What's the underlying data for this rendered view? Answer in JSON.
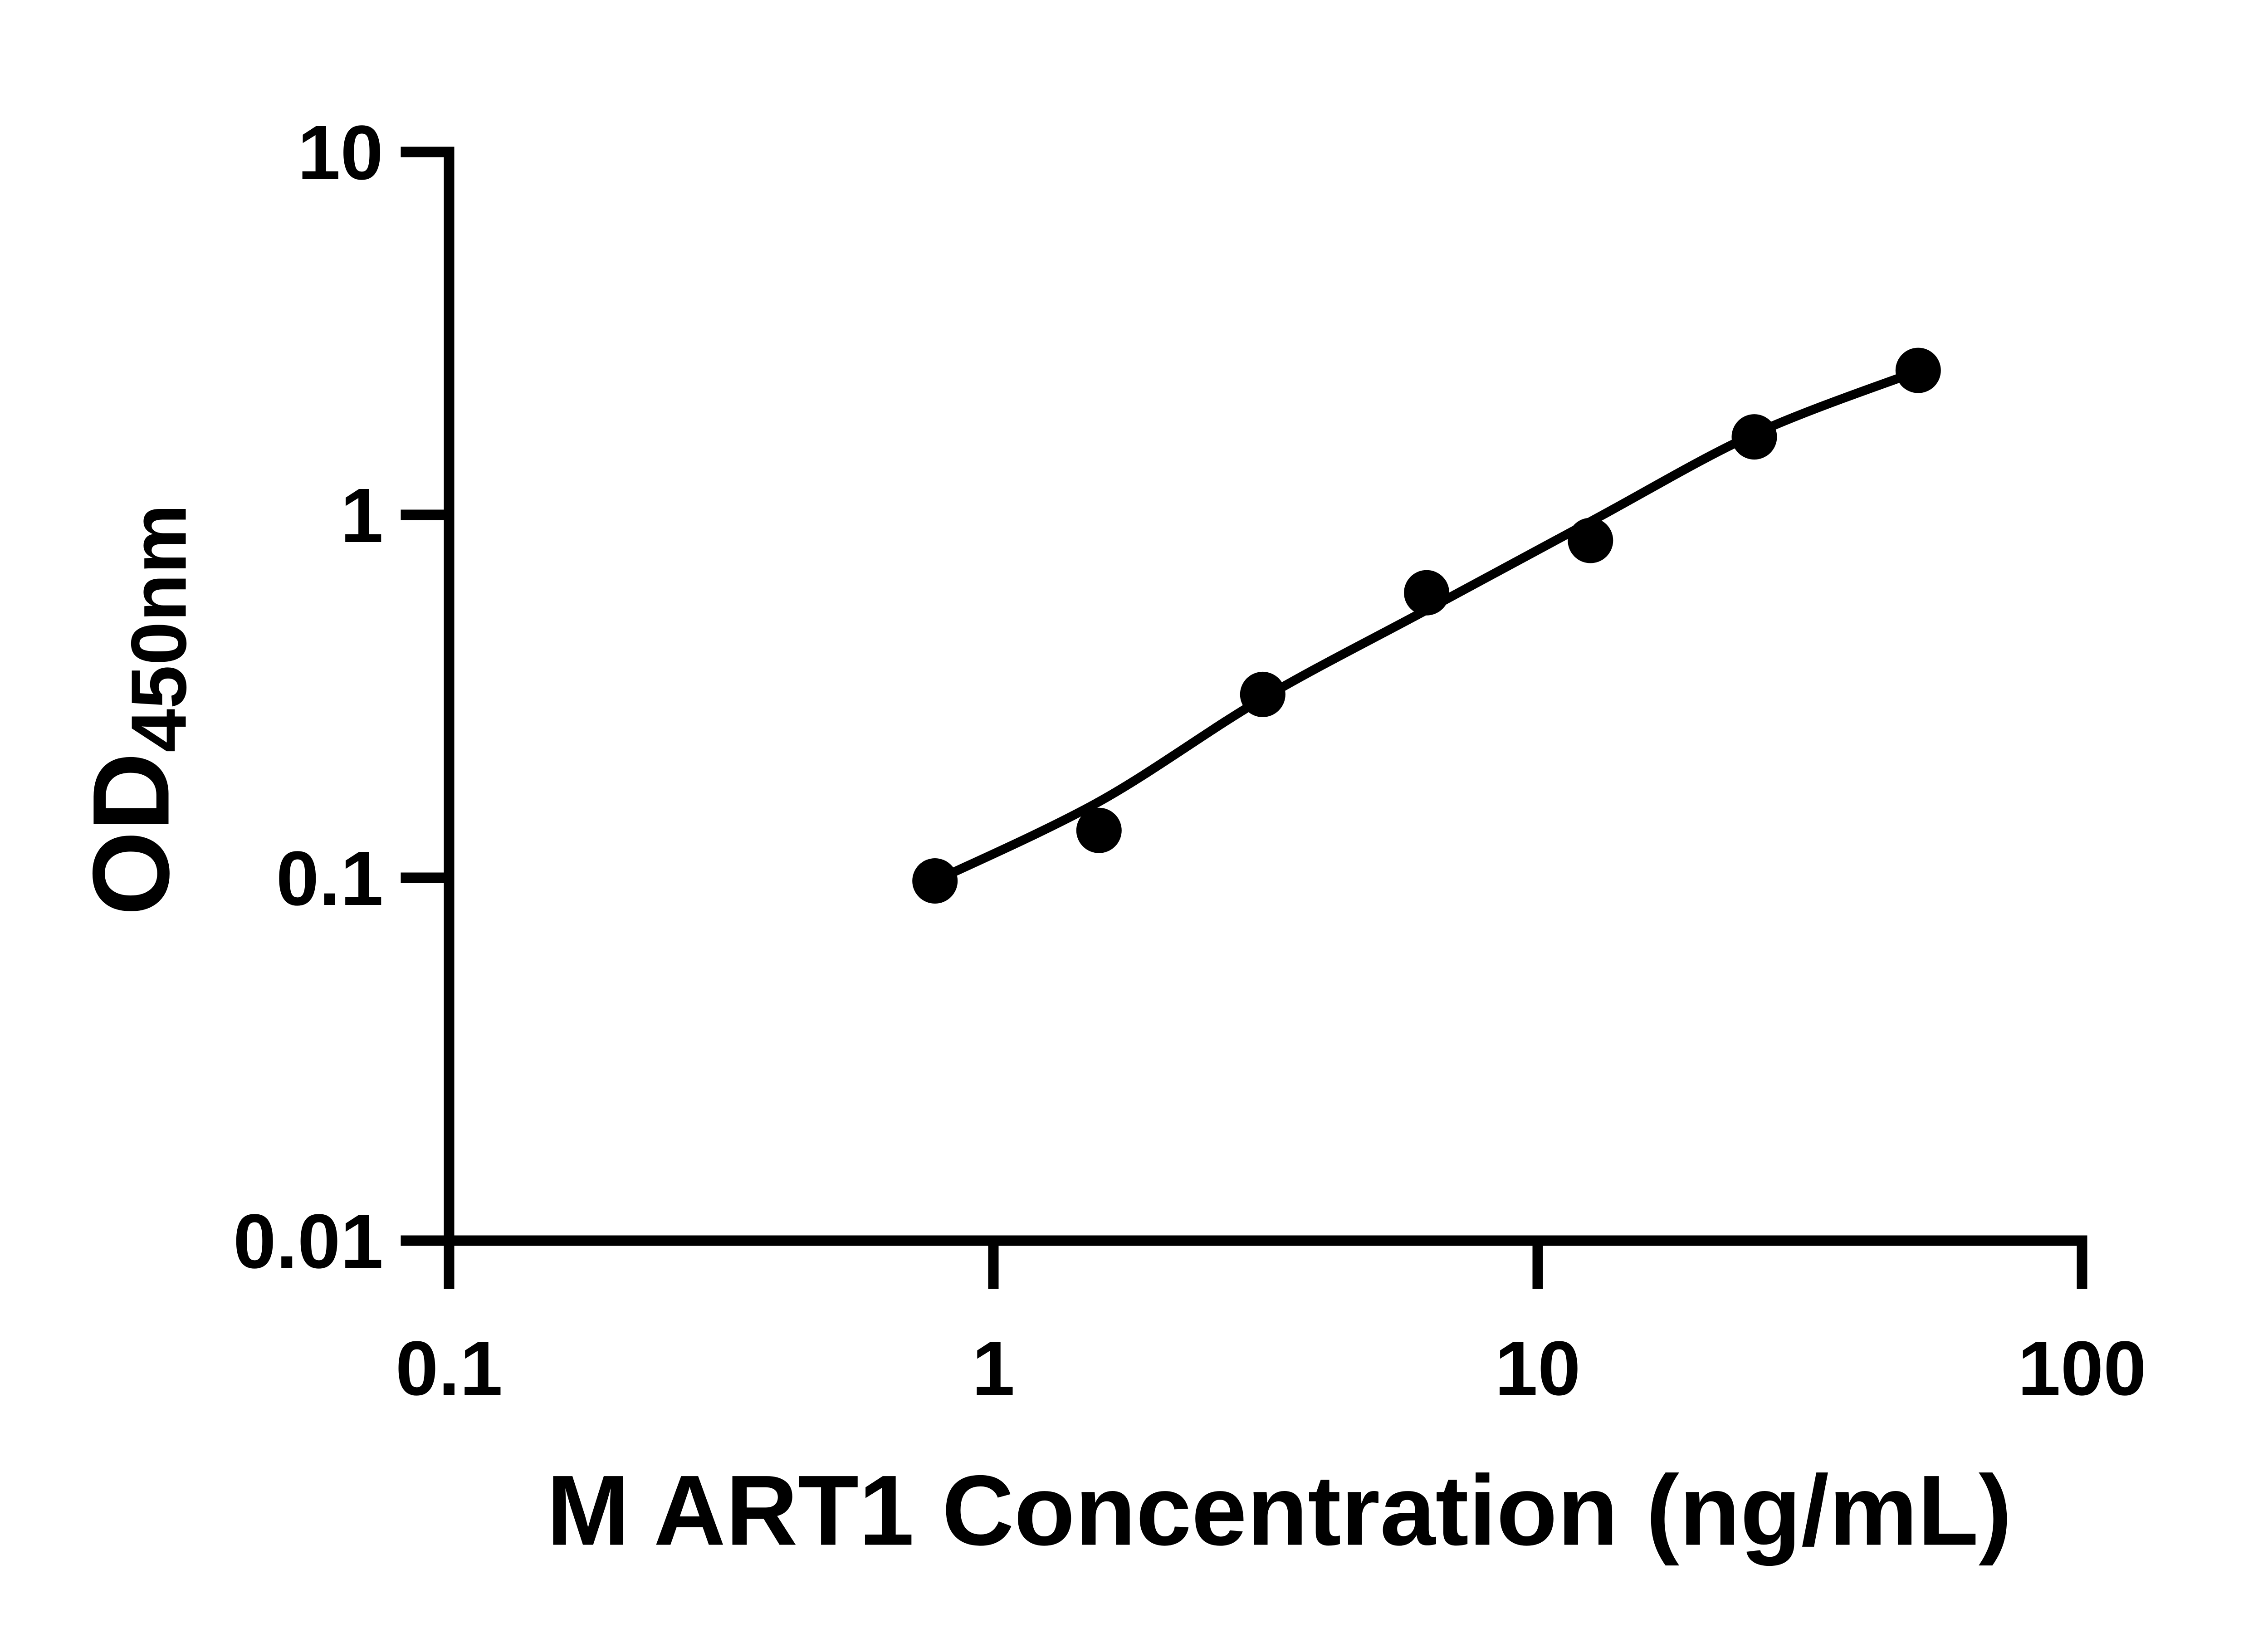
{
  "colors": {
    "ink": "#000000",
    "background": "#ffffff"
  },
  "chart_data": {
    "type": "scatter",
    "title": "",
    "xlabel": "M ART1 Concentration (ng/mL)",
    "ylabel_main": "OD",
    "ylabel_sub": "450nm",
    "x_scale": "log10",
    "y_scale": "log10",
    "xlim": [
      0.1,
      100
    ],
    "ylim": [
      0.01,
      10
    ],
    "grid": false,
    "legend": "none",
    "x_ticks": [
      {
        "value": 0.1,
        "label": "0.1"
      },
      {
        "value": 1,
        "label": "1"
      },
      {
        "value": 10,
        "label": "10"
      },
      {
        "value": 100,
        "label": "100"
      }
    ],
    "y_ticks": [
      {
        "value": 0.01,
        "label": "0.01"
      },
      {
        "value": 0.1,
        "label": "0.1"
      },
      {
        "value": 1,
        "label": "1"
      },
      {
        "value": 10,
        "label": "10"
      }
    ],
    "points": {
      "marker": "filled-circle",
      "x": [
        0.781,
        1.563,
        3.125,
        6.25,
        12.5,
        25,
        50
      ],
      "od": [
        0.098,
        0.135,
        0.32,
        0.61,
        0.85,
        1.64,
        2.5
      ]
    },
    "fit_curve": {
      "style": "solid",
      "x": [
        0.781,
        1.563,
        3.125,
        6.25,
        12.5,
        25,
        50
      ],
      "od": [
        0.098,
        0.162,
        0.312,
        0.547,
        0.958,
        1.67,
        2.49
      ]
    }
  }
}
